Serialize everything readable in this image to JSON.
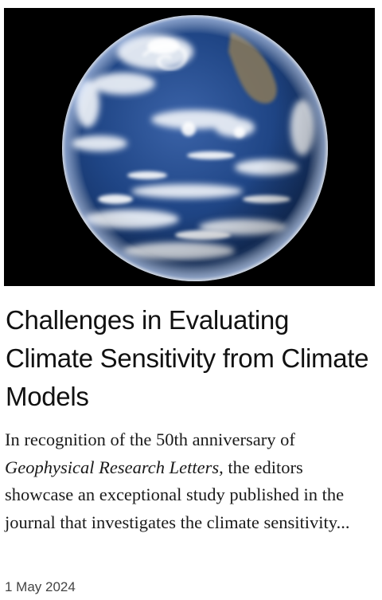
{
  "article": {
    "title": "Challenges in Evaluating Climate Sensitivity from Climate Models",
    "excerpt_before": "In recognition of the 50th anniversary of ",
    "excerpt_journal": "Geophysical Research Letters",
    "excerpt_after": ", the editors showcase an exceptional study published in the journal that investigates the climate sensitivity...",
    "date": "1 May 2024"
  },
  "colors": {
    "image_background": "#000000",
    "ocean": "#1c3f7a",
    "cloud": "#f2f4f7",
    "title_text": "#111111",
    "date_text": "#444444"
  }
}
